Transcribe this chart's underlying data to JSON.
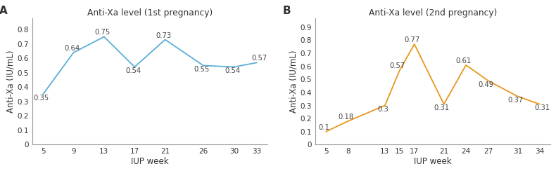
{
  "panel_A": {
    "title": "Anti-Xa level (1st pregnancy)",
    "xlabel": "IUP week",
    "ylabel": "Anti-Xa (IU/mL)",
    "x": [
      5,
      9,
      13,
      17,
      21,
      26,
      30,
      33
    ],
    "y": [
      0.35,
      0.64,
      0.75,
      0.54,
      0.73,
      0.55,
      0.54,
      0.57
    ],
    "labels": [
      "0.35",
      "0.64",
      "0.75",
      "0.54",
      "0.73",
      "0.55",
      "0.54",
      "0.57"
    ],
    "ylim": [
      0,
      0.88
    ],
    "yticks": [
      0,
      0.1,
      0.2,
      0.3,
      0.4,
      0.5,
      0.6,
      0.7,
      0.8
    ],
    "yticklabels": [
      "0",
      "0.1",
      "0.2",
      "0.3",
      "0.4",
      "0.5",
      "0.6",
      "0.7",
      "0.8"
    ],
    "color": "#5bafd6",
    "panel_label": "A",
    "label_ha": [
      "left",
      "left",
      "left",
      "left",
      "left",
      "left",
      "left",
      "left"
    ],
    "label_va": [
      "top",
      "bottom",
      "bottom",
      "top",
      "bottom",
      "top",
      "top",
      "bottom"
    ],
    "label_dx": [
      -0.2,
      -0.2,
      -0.2,
      -0.2,
      -0.2,
      -0.2,
      -0.2,
      0.3
    ],
    "label_dy": [
      -0.003,
      0.005,
      0.005,
      -0.003,
      0.005,
      -0.003,
      -0.003,
      0.005
    ]
  },
  "panel_B": {
    "title": "Anti-Xa level (2nd pregnancy)",
    "xlabel": "IUP week",
    "ylabel": "Anti-Xa (IU/mL)",
    "x": [
      5,
      8,
      13,
      15,
      17,
      21,
      24,
      27,
      31,
      34
    ],
    "y": [
      0.1,
      0.18,
      0.3,
      0.57,
      0.77,
      0.31,
      0.61,
      0.49,
      0.37,
      0.31
    ],
    "labels": [
      "0.1",
      "0.18",
      "0.3",
      "0.57",
      "0.77",
      "0.31",
      "0.61",
      "0.49",
      "0.37",
      "0.31"
    ],
    "ylim": [
      0,
      0.97
    ],
    "yticks": [
      0,
      0.1,
      0.2,
      0.3,
      0.4,
      0.5,
      0.6,
      0.7,
      0.8,
      0.9
    ],
    "yticklabels": [
      "0",
      "0.1",
      "0.2",
      "0.3",
      "0.4",
      "0.5",
      "0.6",
      "0.7",
      "0.8",
      "0.9"
    ],
    "color": "#e8971e",
    "panel_label": "B",
    "label_ha": [
      "left",
      "left",
      "left",
      "left",
      "left",
      "left",
      "left",
      "left",
      "left",
      "left"
    ],
    "label_va": [
      "bottom",
      "bottom",
      "top",
      "bottom",
      "bottom",
      "top",
      "bottom",
      "top",
      "top",
      "top"
    ],
    "label_dx": [
      -0.3,
      -0.3,
      -0.3,
      -0.3,
      -0.3,
      -0.3,
      -0.3,
      -0.3,
      -0.3,
      0.3
    ],
    "label_dy": [
      0.005,
      0.005,
      -0.003,
      0.005,
      0.005,
      -0.003,
      0.005,
      -0.003,
      -0.003,
      -0.003
    ]
  },
  "fig_width": 7.9,
  "fig_height": 2.44,
  "dpi": 100
}
